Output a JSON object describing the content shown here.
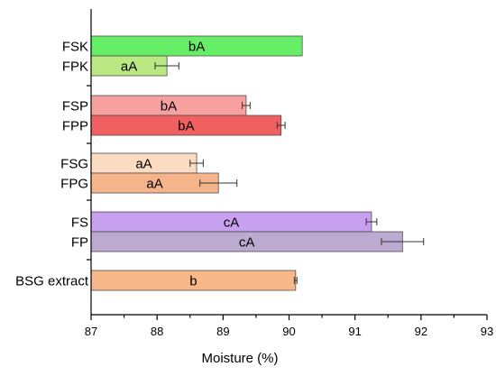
{
  "chart_data": {
    "type": "bar",
    "orientation": "horizontal",
    "title": "",
    "xlabel": "Moisture (%)",
    "ylabel": "",
    "xlim": [
      87,
      93
    ],
    "xticks": [
      87,
      88,
      89,
      90,
      91,
      92,
      93
    ],
    "grid": false,
    "legend": "none",
    "groups": [
      {
        "bars": [
          {
            "category": "FSK",
            "value": 90.2,
            "error": 0.0,
            "label": "bA",
            "color": "#66ee66"
          },
          {
            "category": "FPK",
            "value": 88.15,
            "error": 0.18,
            "label": "aA",
            "color": "#bbe882"
          }
        ]
      },
      {
        "bars": [
          {
            "category": "FSP",
            "value": 89.35,
            "error": 0.06,
            "label": "bA",
            "color": "#f7a0a0"
          },
          {
            "category": "FPP",
            "value": 89.88,
            "error": 0.06,
            "label": "bA",
            "color": "#f06060"
          }
        ]
      },
      {
        "bars": [
          {
            "category": "FSG",
            "value": 88.6,
            "error": 0.1,
            "label": "aA",
            "color": "#fbdcc2"
          },
          {
            "category": "FPG",
            "value": 88.93,
            "error": 0.28,
            "label": "aA",
            "color": "#f5b48a"
          }
        ]
      },
      {
        "bars": [
          {
            "category": "FS",
            "value": 91.25,
            "error": 0.08,
            "label": "cA",
            "color": "#c8a0f0"
          },
          {
            "category": "FP",
            "value": 91.72,
            "error": 0.32,
            "label": "cA",
            "color": "#bcaad0"
          }
        ]
      },
      {
        "bars": [
          {
            "category": "BSG extract",
            "value": 90.1,
            "error": 0.02,
            "label": "b",
            "color": "#f8b88a"
          }
        ]
      }
    ]
  }
}
